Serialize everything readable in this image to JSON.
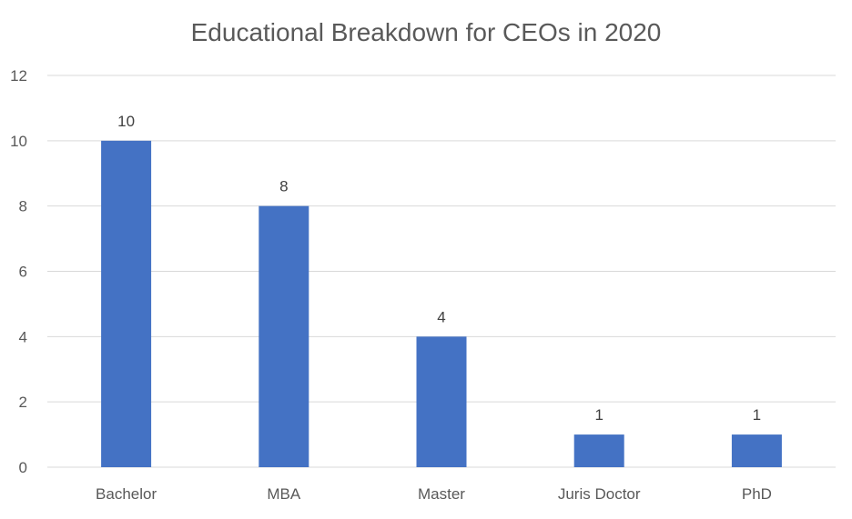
{
  "chart_data": {
    "type": "bar",
    "title": "Educational Breakdown for CEOs in 2020",
    "xlabel": "",
    "ylabel": "",
    "categories": [
      "Bachelor",
      "MBA",
      "Master",
      "Juris Doctor",
      "PhD"
    ],
    "values": [
      10,
      8,
      4,
      1,
      1
    ],
    "ylim": [
      0,
      12
    ],
    "yticks": [
      0,
      2,
      4,
      6,
      8,
      10,
      12
    ],
    "grid": true,
    "legend": "none",
    "data_labels": true,
    "bar_color": "#4472C4"
  }
}
